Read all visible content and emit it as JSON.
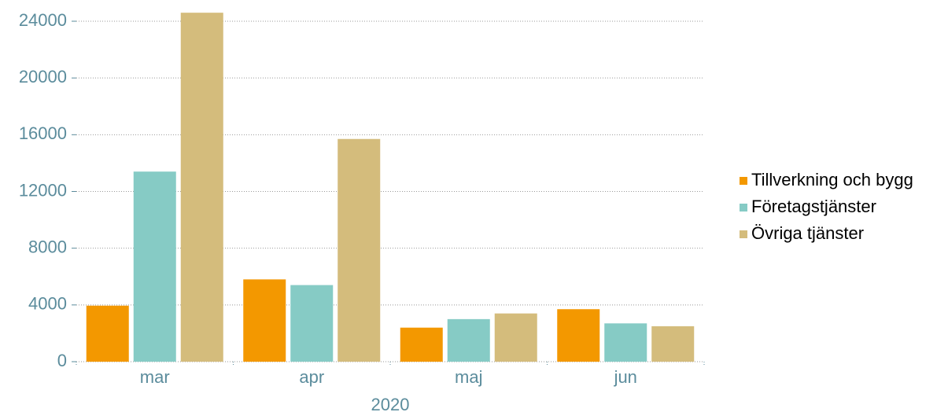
{
  "chart_data": {
    "type": "bar",
    "x_label": "2020",
    "categories": [
      "mar",
      "apr",
      "maj",
      "jun"
    ],
    "series": [
      {
        "name": "Tillverkning och bygg",
        "color": "#f39800",
        "values": [
          3950,
          5800,
          2400,
          3700
        ]
      },
      {
        "name": "Företagstjänster",
        "color": "#86cbc5",
        "values": [
          13400,
          5400,
          3000,
          2700
        ]
      },
      {
        "name": "Övriga tjänster",
        "color": "#d4bc7c",
        "values": [
          24600,
          15700,
          3400,
          2500
        ]
      }
    ],
    "ylim": [
      0,
      24700
    ],
    "yticks": [
      0,
      4000,
      8000,
      12000,
      16000,
      20000,
      24000
    ],
    "grid": true,
    "legend": "right"
  }
}
